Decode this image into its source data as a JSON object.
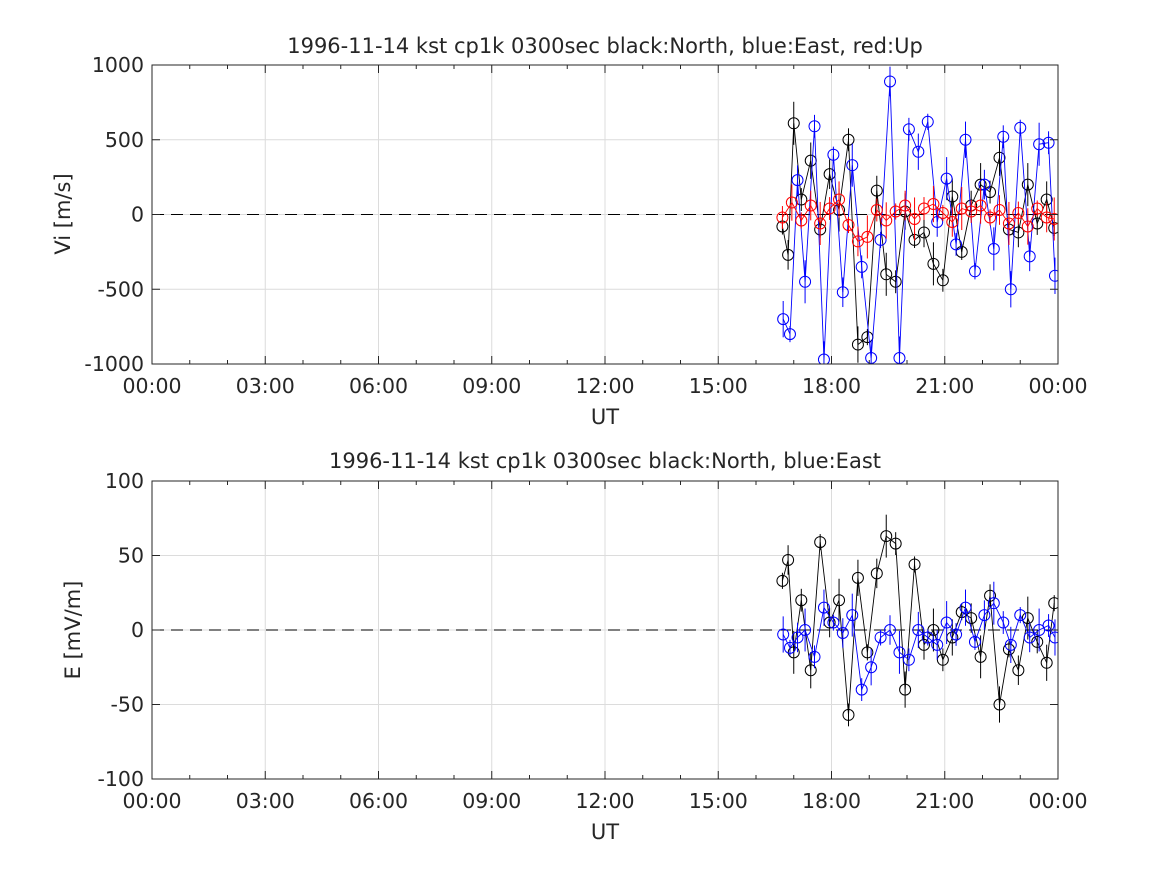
{
  "chart_data": [
    {
      "type": "scatter",
      "title": "1996-11-14 kst cp1k 0300sec black:North, blue:East, red:Up",
      "xlabel": "UT",
      "ylabel": "Vi [m/s]",
      "xlim": [
        0,
        24
      ],
      "ylim": [
        -1000,
        1000
      ],
      "xtick_labels": [
        "00:00",
        "03:00",
        "06:00",
        "09:00",
        "12:00",
        "15:00",
        "18:00",
        "21:00",
        "00:00"
      ],
      "ytick_values": [
        -1000,
        -500,
        0,
        500,
        1000
      ],
      "ytick_labels": [
        "-1000",
        "-500",
        "0",
        "500",
        "1000"
      ],
      "grid": true,
      "zero_line": "dashed",
      "series": [
        {
          "name": "North",
          "color": "#000000",
          "x": [
            16.7,
            16.85,
            17.0,
            17.2,
            17.45,
            17.7,
            17.95,
            18.2,
            18.45,
            18.7,
            18.95,
            19.2,
            19.45,
            19.7,
            19.95,
            20.2,
            20.45,
            20.7,
            20.95,
            21.2,
            21.45,
            21.7,
            21.95,
            22.2,
            22.45,
            22.7,
            22.95,
            23.2,
            23.45,
            23.7,
            23.9
          ],
          "y": [
            -80,
            -270,
            610,
            100,
            360,
            -100,
            270,
            30,
            500,
            -870,
            -820,
            160,
            -400,
            -450,
            20,
            -170,
            -120,
            -330,
            -440,
            120,
            -250,
            60,
            200,
            150,
            380,
            -100,
            -120,
            200,
            -60,
            100,
            -90
          ]
        },
        {
          "name": "East",
          "color": "#0000ff",
          "x": [
            16.72,
            16.9,
            17.1,
            17.3,
            17.55,
            17.8,
            18.05,
            18.3,
            18.55,
            18.8,
            19.05,
            19.3,
            19.55,
            19.8,
            20.05,
            20.3,
            20.55,
            20.8,
            21.05,
            21.3,
            21.55,
            21.8,
            22.05,
            22.3,
            22.55,
            22.75,
            23.0,
            23.25,
            23.5,
            23.75,
            23.92
          ],
          "y": [
            -700,
            -800,
            230,
            -450,
            590,
            -970,
            400,
            -520,
            330,
            -350,
            -960,
            -170,
            890,
            -960,
            570,
            420,
            620,
            -50,
            240,
            -200,
            500,
            -380,
            200,
            -230,
            520,
            -500,
            580,
            -280,
            470,
            480,
            -410
          ]
        },
        {
          "name": "Up",
          "color": "#ff0000",
          "x": [
            16.7,
            16.95,
            17.2,
            17.45,
            17.7,
            17.95,
            18.2,
            18.45,
            18.7,
            18.95,
            19.2,
            19.45,
            19.7,
            19.95,
            20.2,
            20.45,
            20.7,
            20.95,
            21.2,
            21.45,
            21.7,
            21.95,
            22.2,
            22.45,
            22.7,
            22.95,
            23.2,
            23.45,
            23.7,
            23.9
          ],
          "y": [
            -20,
            80,
            -40,
            60,
            -60,
            40,
            100,
            -70,
            -180,
            -150,
            30,
            -40,
            20,
            60,
            -30,
            40,
            70,
            10,
            -50,
            40,
            20,
            60,
            -20,
            30,
            -60,
            10,
            -80,
            40,
            -20,
            -30
          ]
        }
      ]
    },
    {
      "type": "scatter",
      "title": "1996-11-14 kst cp1k 0300sec black:North, blue:East",
      "xlabel": "UT",
      "ylabel": "E [mV/m]",
      "xlim": [
        0,
        24
      ],
      "ylim": [
        -100,
        100
      ],
      "xtick_labels": [
        "00:00",
        "03:00",
        "06:00",
        "09:00",
        "12:00",
        "15:00",
        "18:00",
        "21:00",
        "00:00"
      ],
      "ytick_values": [
        -100,
        -50,
        0,
        50,
        100
      ],
      "ytick_labels": [
        "-100",
        "-50",
        "0",
        "50",
        "100"
      ],
      "grid": true,
      "zero_line": "dashed",
      "series": [
        {
          "name": "North",
          "color": "#000000",
          "x": [
            16.7,
            16.85,
            17.0,
            17.2,
            17.45,
            17.7,
            17.95,
            18.2,
            18.45,
            18.7,
            18.95,
            19.2,
            19.45,
            19.7,
            19.95,
            20.2,
            20.45,
            20.7,
            20.95,
            21.2,
            21.45,
            21.7,
            21.95,
            22.2,
            22.45,
            22.7,
            22.95,
            23.2,
            23.45,
            23.7,
            23.9
          ],
          "y": [
            33,
            47,
            -15,
            20,
            -27,
            59,
            5,
            20,
            -57,
            35,
            -15,
            38,
            63,
            58,
            -40,
            44,
            -10,
            0,
            -20,
            -5,
            12,
            8,
            -18,
            23,
            -50,
            -13,
            -27,
            8,
            -8,
            -22,
            18
          ]
        },
        {
          "name": "East",
          "color": "#0000ff",
          "x": [
            16.72,
            16.9,
            17.1,
            17.3,
            17.55,
            17.8,
            18.05,
            18.3,
            18.55,
            18.8,
            19.05,
            19.3,
            19.55,
            19.8,
            20.05,
            20.3,
            20.55,
            20.8,
            21.05,
            21.3,
            21.55,
            21.8,
            22.05,
            22.3,
            22.55,
            22.75,
            23.0,
            23.25,
            23.5,
            23.75,
            23.92
          ],
          "y": [
            -3,
            -12,
            -5,
            0,
            -18,
            15,
            5,
            -2,
            10,
            -40,
            -25,
            -5,
            0,
            -15,
            -20,
            0,
            -5,
            -10,
            5,
            -3,
            15,
            -8,
            10,
            18,
            5,
            -10,
            10,
            -5,
            0,
            3,
            -5
          ]
        }
      ]
    }
  ]
}
